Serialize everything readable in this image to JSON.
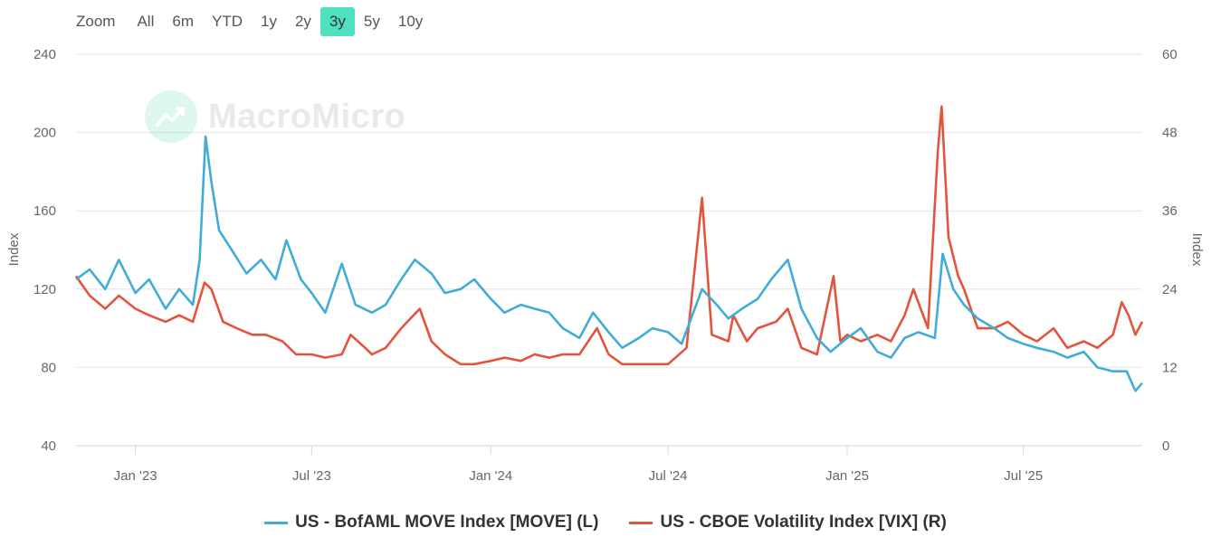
{
  "zoom": {
    "label": "Zoom",
    "buttons": [
      "All",
      "6m",
      "YTD",
      "1y",
      "2y",
      "3y",
      "5y",
      "10y"
    ],
    "active": "3y"
  },
  "watermark": {
    "text": "MacroMicro"
  },
  "colors": {
    "move": "#41acd7",
    "vix": "#e5533c",
    "grid": "#e6e6e6",
    "zoom_active": "#4fe0c0"
  },
  "chart_data": {
    "type": "line",
    "title": "",
    "x_tick_labels": [
      "Jan '23",
      "Jul '23",
      "Jan '24",
      "Jul '24",
      "Jan '25",
      "Jul '25"
    ],
    "x_tick_dates": [
      "2023-01-01",
      "2023-07-01",
      "2024-01-01",
      "2024-07-01",
      "2025-01-01",
      "2025-07-01"
    ],
    "x_range": [
      "2022-11-01",
      "2025-10-31"
    ],
    "left_axis": {
      "label": "Index",
      "ylim": [
        40,
        240
      ],
      "ticks": [
        40,
        80,
        120,
        160,
        200,
        240
      ]
    },
    "right_axis": {
      "label": "Index",
      "ylim": [
        0,
        60
      ],
      "ticks": [
        0,
        12,
        24,
        36,
        48,
        60
      ]
    },
    "series": [
      {
        "name": "US - BofAML MOVE Index [MOVE] (L)",
        "axis": "left",
        "points": [
          [
            "2022-11-01",
            125
          ],
          [
            "2022-11-15",
            130
          ],
          [
            "2022-12-01",
            120
          ],
          [
            "2022-12-15",
            135
          ],
          [
            "2023-01-01",
            118
          ],
          [
            "2023-01-15",
            125
          ],
          [
            "2023-02-01",
            110
          ],
          [
            "2023-02-15",
            120
          ],
          [
            "2023-03-01",
            112
          ],
          [
            "2023-03-08",
            135
          ],
          [
            "2023-03-14",
            198
          ],
          [
            "2023-03-20",
            175
          ],
          [
            "2023-03-28",
            150
          ],
          [
            "2023-04-10",
            140
          ],
          [
            "2023-04-25",
            128
          ],
          [
            "2023-05-10",
            135
          ],
          [
            "2023-05-25",
            125
          ],
          [
            "2023-06-05",
            145
          ],
          [
            "2023-06-20",
            125
          ],
          [
            "2023-07-01",
            118
          ],
          [
            "2023-07-15",
            108
          ],
          [
            "2023-08-01",
            133
          ],
          [
            "2023-08-15",
            112
          ],
          [
            "2023-09-01",
            108
          ],
          [
            "2023-09-15",
            112
          ],
          [
            "2023-10-01",
            125
          ],
          [
            "2023-10-15",
            135
          ],
          [
            "2023-11-01",
            128
          ],
          [
            "2023-11-15",
            118
          ],
          [
            "2023-12-01",
            120
          ],
          [
            "2023-12-15",
            125
          ],
          [
            "2024-01-01",
            115
          ],
          [
            "2024-01-15",
            108
          ],
          [
            "2024-02-01",
            112
          ],
          [
            "2024-02-15",
            110
          ],
          [
            "2024-03-01",
            108
          ],
          [
            "2024-03-15",
            100
          ],
          [
            "2024-04-01",
            95
          ],
          [
            "2024-04-15",
            108
          ],
          [
            "2024-05-01",
            98
          ],
          [
            "2024-05-15",
            90
          ],
          [
            "2024-06-01",
            95
          ],
          [
            "2024-06-15",
            100
          ],
          [
            "2024-07-01",
            98
          ],
          [
            "2024-07-15",
            92
          ],
          [
            "2024-08-05",
            120
          ],
          [
            "2024-08-20",
            112
          ],
          [
            "2024-09-01",
            105
          ],
          [
            "2024-09-15",
            110
          ],
          [
            "2024-10-01",
            115
          ],
          [
            "2024-10-15",
            125
          ],
          [
            "2024-11-01",
            135
          ],
          [
            "2024-11-15",
            110
          ],
          [
            "2024-12-01",
            95
          ],
          [
            "2024-12-15",
            88
          ],
          [
            "2025-01-01",
            95
          ],
          [
            "2025-01-15",
            100
          ],
          [
            "2025-02-01",
            88
          ],
          [
            "2025-02-15",
            85
          ],
          [
            "2025-03-01",
            95
          ],
          [
            "2025-03-15",
            98
          ],
          [
            "2025-04-01",
            95
          ],
          [
            "2025-04-09",
            138
          ],
          [
            "2025-04-20",
            120
          ],
          [
            "2025-05-01",
            112
          ],
          [
            "2025-05-15",
            105
          ],
          [
            "2025-06-01",
            100
          ],
          [
            "2025-06-15",
            95
          ],
          [
            "2025-07-01",
            92
          ],
          [
            "2025-07-15",
            90
          ],
          [
            "2025-08-01",
            88
          ],
          [
            "2025-08-15",
            85
          ],
          [
            "2025-09-01",
            88
          ],
          [
            "2025-09-15",
            80
          ],
          [
            "2025-10-01",
            78
          ],
          [
            "2025-10-15",
            78
          ],
          [
            "2025-10-24",
            68
          ],
          [
            "2025-10-31",
            72
          ]
        ]
      },
      {
        "name": "US - CBOE Volatility Index [VIX] (R)",
        "axis": "right",
        "points": [
          [
            "2022-11-01",
            26
          ],
          [
            "2022-11-15",
            23
          ],
          [
            "2022-12-01",
            21
          ],
          [
            "2022-12-15",
            23
          ],
          [
            "2023-01-01",
            21
          ],
          [
            "2023-01-15",
            20
          ],
          [
            "2023-02-01",
            19
          ],
          [
            "2023-02-15",
            20
          ],
          [
            "2023-03-01",
            19
          ],
          [
            "2023-03-13",
            25
          ],
          [
            "2023-03-20",
            24
          ],
          [
            "2023-04-01",
            19
          ],
          [
            "2023-04-15",
            18
          ],
          [
            "2023-05-01",
            17
          ],
          [
            "2023-05-15",
            17
          ],
          [
            "2023-06-01",
            16
          ],
          [
            "2023-06-15",
            14
          ],
          [
            "2023-07-01",
            14
          ],
          [
            "2023-07-15",
            13.5
          ],
          [
            "2023-08-01",
            14
          ],
          [
            "2023-08-10",
            17
          ],
          [
            "2023-08-25",
            15
          ],
          [
            "2023-09-01",
            14
          ],
          [
            "2023-09-15",
            15
          ],
          [
            "2023-10-01",
            18
          ],
          [
            "2023-10-20",
            21
          ],
          [
            "2023-11-01",
            16
          ],
          [
            "2023-11-15",
            14
          ],
          [
            "2023-12-01",
            12.5
          ],
          [
            "2023-12-15",
            12.5
          ],
          [
            "2024-01-01",
            13
          ],
          [
            "2024-01-15",
            13.5
          ],
          [
            "2024-02-01",
            13
          ],
          [
            "2024-02-15",
            14
          ],
          [
            "2024-03-01",
            13.5
          ],
          [
            "2024-03-15",
            14
          ],
          [
            "2024-04-01",
            14
          ],
          [
            "2024-04-19",
            18
          ],
          [
            "2024-05-01",
            14
          ],
          [
            "2024-05-15",
            12.5
          ],
          [
            "2024-06-01",
            12.5
          ],
          [
            "2024-06-15",
            12.5
          ],
          [
            "2024-07-01",
            12.5
          ],
          [
            "2024-07-20",
            15
          ],
          [
            "2024-08-05",
            38
          ],
          [
            "2024-08-15",
            17
          ],
          [
            "2024-09-01",
            16
          ],
          [
            "2024-09-06",
            20
          ],
          [
            "2024-09-20",
            16
          ],
          [
            "2024-10-01",
            18
          ],
          [
            "2024-10-20",
            19
          ],
          [
            "2024-11-01",
            21
          ],
          [
            "2024-11-15",
            15
          ],
          [
            "2024-12-01",
            14
          ],
          [
            "2024-12-18",
            26
          ],
          [
            "2024-12-25",
            16
          ],
          [
            "2025-01-01",
            17
          ],
          [
            "2025-01-15",
            16
          ],
          [
            "2025-02-01",
            17
          ],
          [
            "2025-02-15",
            16
          ],
          [
            "2025-03-01",
            20
          ],
          [
            "2025-03-10",
            24
          ],
          [
            "2025-03-25",
            18
          ],
          [
            "2025-04-04",
            45
          ],
          [
            "2025-04-08",
            52
          ],
          [
            "2025-04-15",
            32
          ],
          [
            "2025-04-25",
            26
          ],
          [
            "2025-05-01",
            24
          ],
          [
            "2025-05-15",
            18
          ],
          [
            "2025-06-01",
            18
          ],
          [
            "2025-06-15",
            19
          ],
          [
            "2025-07-01",
            17
          ],
          [
            "2025-07-15",
            16
          ],
          [
            "2025-08-01",
            18
          ],
          [
            "2025-08-15",
            15
          ],
          [
            "2025-09-01",
            16
          ],
          [
            "2025-09-15",
            15
          ],
          [
            "2025-10-01",
            17
          ],
          [
            "2025-10-10",
            22
          ],
          [
            "2025-10-17",
            20
          ],
          [
            "2025-10-24",
            17
          ],
          [
            "2025-10-31",
            19
          ]
        ]
      }
    ]
  }
}
